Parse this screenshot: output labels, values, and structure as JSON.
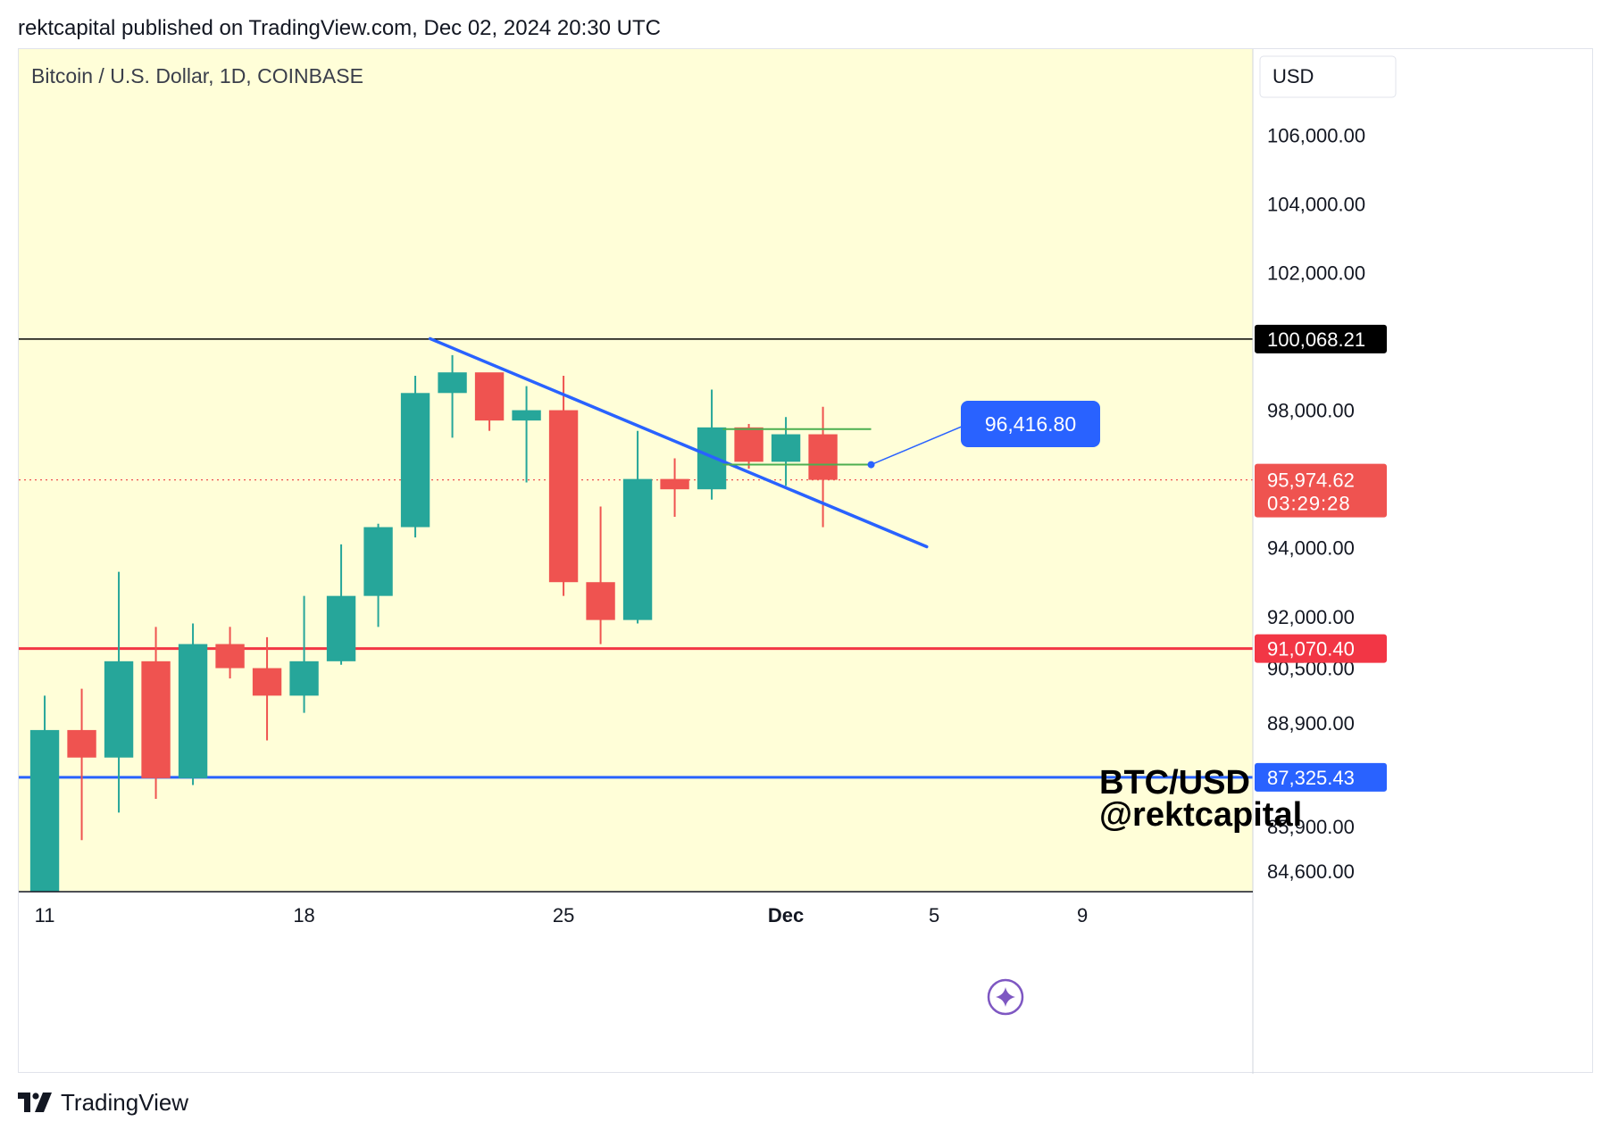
{
  "header": {
    "publish_line": "rektcapital published on TradingView.com, Dec 02, 2024 20:30 UTC"
  },
  "footer": {
    "brand": "TradingView",
    "logo_icon": "tradingview-logo-icon"
  },
  "colors": {
    "plot_background": "#fffed8",
    "bull": "#26a69a",
    "bear": "#ef5350",
    "trendline": "#2962ff",
    "support_line": "#2962ff",
    "resistance_line": "#000000",
    "mid_line": "#f23645",
    "range_box": "#4caf50",
    "axis_text": "#131722"
  },
  "chart_data": {
    "type": "candlestick",
    "title": "Bitcoin / U.S. Dollar, 1D, COINBASE",
    "currency_label": "USD",
    "watermark_lines": [
      "BTC/USD",
      "@rektcapital"
    ],
    "ylim": [
      84000,
      108500
    ],
    "x_index_range": [
      -0.7,
      32.6
    ],
    "x_ticks": [
      {
        "index": 0,
        "label": "11",
        "bold": false
      },
      {
        "index": 7,
        "label": "18",
        "bold": false
      },
      {
        "index": 14,
        "label": "25",
        "bold": false
      },
      {
        "index": 20,
        "label": "Dec",
        "bold": true
      },
      {
        "index": 24,
        "label": "5",
        "bold": false
      },
      {
        "index": 28,
        "label": "9",
        "bold": false
      }
    ],
    "y_ticks": [
      106000,
      104000,
      102000,
      98000,
      94000,
      92000,
      90500,
      88900,
      85900,
      84600
    ],
    "y_tick_labels": [
      "106,000.00",
      "104,000.00",
      "102,000.00",
      "98,000.00",
      "94,000.00",
      "92,000.00",
      "90,500.00",
      "88,900.00",
      "85,900.00",
      "84,600.00"
    ],
    "candles": [
      {
        "date": "Nov 11",
        "open": 81500,
        "high": 89700,
        "low": 80200,
        "close": 88700
      },
      {
        "date": "Nov 12",
        "open": 88700,
        "high": 89900,
        "low": 85500,
        "close": 87900
      },
      {
        "date": "Nov 13",
        "open": 87900,
        "high": 93300,
        "low": 86300,
        "close": 90700
      },
      {
        "date": "Nov 14",
        "open": 90700,
        "high": 91700,
        "low": 86700,
        "close": 87300
      },
      {
        "date": "Nov 15",
        "open": 87300,
        "high": 91800,
        "low": 87100,
        "close": 91200
      },
      {
        "date": "Nov 16",
        "open": 91200,
        "high": 91700,
        "low": 90200,
        "close": 90500
      },
      {
        "date": "Nov 17",
        "open": 90500,
        "high": 91400,
        "low": 88400,
        "close": 89700
      },
      {
        "date": "Nov 18",
        "open": 89700,
        "high": 92600,
        "low": 89200,
        "close": 90700
      },
      {
        "date": "Nov 19",
        "open": 90700,
        "high": 94100,
        "low": 90600,
        "close": 92600
      },
      {
        "date": "Nov 20",
        "open": 92600,
        "high": 94700,
        "low": 91700,
        "close": 94600
      },
      {
        "date": "Nov 21",
        "open": 94600,
        "high": 99000,
        "low": 94300,
        "close": 98500
      },
      {
        "date": "Nov 22",
        "open": 98500,
        "high": 99600,
        "low": 97200,
        "close": 99100
      },
      {
        "date": "Nov 23",
        "open": 99100,
        "high": 99000,
        "low": 97400,
        "close": 97700
      },
      {
        "date": "Nov 24",
        "open": 97700,
        "high": 98700,
        "low": 95900,
        "close": 98000
      },
      {
        "date": "Nov 25",
        "open": 98000,
        "high": 99000,
        "low": 92600,
        "close": 93000
      },
      {
        "date": "Nov 26",
        "open": 93000,
        "high": 95200,
        "low": 91200,
        "close": 91900
      },
      {
        "date": "Nov 27",
        "open": 91900,
        "high": 97400,
        "low": 91800,
        "close": 96000
      },
      {
        "date": "Nov 28",
        "open": 96000,
        "high": 96600,
        "low": 94900,
        "close": 95700
      },
      {
        "date": "Nov 29",
        "open": 95700,
        "high": 98600,
        "low": 95400,
        "close": 97500
      },
      {
        "date": "Nov 30",
        "open": 97500,
        "high": 97600,
        "low": 96300,
        "close": 96500
      },
      {
        "date": "Dec 01",
        "open": 96500,
        "high": 97800,
        "low": 95800,
        "close": 97300
      },
      {
        "date": "Dec 02",
        "open": 97300,
        "high": 98100,
        "low": 94600,
        "close": 95975
      }
    ],
    "horizontal_levels": [
      {
        "name": "resistance",
        "value": 100068.21,
        "label": "100,068.21",
        "color": "#000000"
      },
      {
        "name": "mid-support",
        "value": 91070.4,
        "label": "91,070.40",
        "color": "#f23645"
      },
      {
        "name": "support",
        "value": 87325.43,
        "label": "87,325.43",
        "color": "#2962ff"
      }
    ],
    "last_price": {
      "value": 95974.62,
      "label": "95,974.62",
      "countdown": "03:29:28",
      "color": "#ef5350"
    },
    "trendline": {
      "start": {
        "index": 10.4,
        "value": 100080
      },
      "end": {
        "index": 23.8,
        "value": 94030
      }
    },
    "range_box": {
      "start_index": 18.3,
      "end_index": 22.3,
      "top": 97450,
      "bottom": 96420
    },
    "price_note": {
      "label": "96,416.80",
      "anchor_index": 22.3,
      "anchor_value": 96416.8,
      "bubble_index": 26.6,
      "bubble_value": 97600
    }
  }
}
